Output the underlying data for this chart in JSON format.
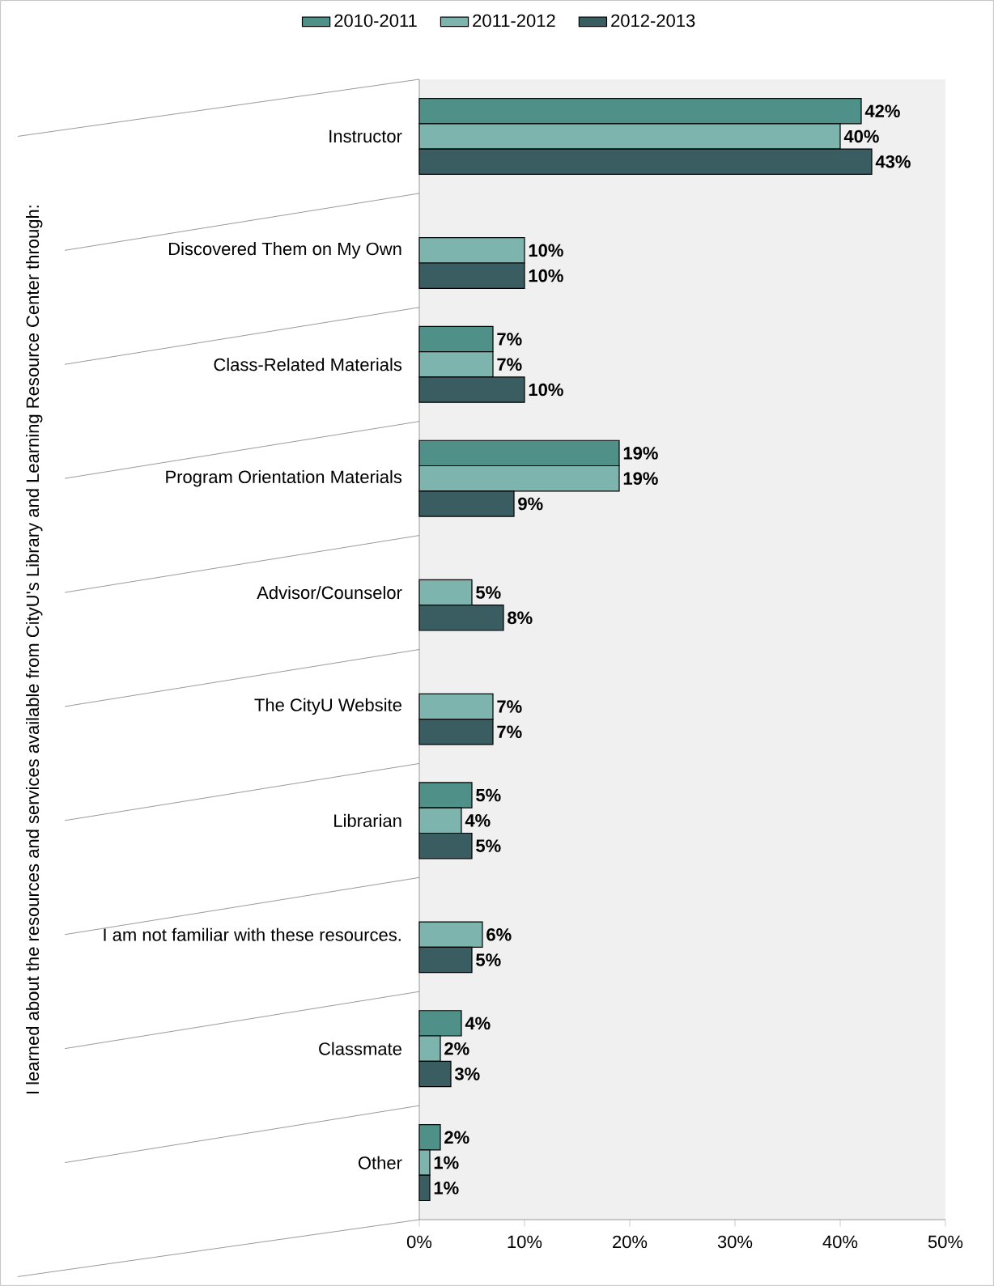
{
  "chart_data": {
    "type": "bar",
    "orientation": "horizontal",
    "ylabel": "I learned about the resources and services available from CityU's Library and Learning Resource Center through:",
    "categories": [
      "Instructor",
      "Discovered Them on My Own",
      "Class-Related Materials",
      "Program Orientation Materials",
      "Advisor/Counselor",
      "The CityU Website",
      "Librarian",
      "I am not familiar with these resources.",
      "Classmate",
      "Other"
    ],
    "series": [
      {
        "name": "2010-2011",
        "color": "#4f9188",
        "values": [
          42,
          null,
          7,
          19,
          null,
          null,
          5,
          null,
          4,
          2
        ],
        "value_labels": [
          "42%",
          null,
          "7%",
          "19%",
          null,
          null,
          "5%",
          null,
          "4%",
          "2%"
        ]
      },
      {
        "name": "2011-2012",
        "color": "#7db5ae",
        "values": [
          40,
          10,
          7,
          19,
          5,
          7,
          4,
          6,
          2,
          1
        ],
        "value_labels": [
          "40%",
          "10%",
          "7%",
          "19%",
          "5%",
          "7%",
          "4%",
          "6%",
          "2%",
          "1%"
        ]
      },
      {
        "name": "2012-2013",
        "color": "#3a5d62",
        "values": [
          43,
          10,
          10,
          9,
          8,
          7,
          5,
          5,
          3,
          1
        ],
        "value_labels": [
          "43%",
          "10%",
          "10%",
          "9%",
          "8%",
          "7%",
          "5%",
          "5%",
          "3%",
          "1%"
        ]
      }
    ],
    "xlim": [
      0,
      50
    ],
    "xticks": [
      {
        "value": 0,
        "label": "0%"
      },
      {
        "value": 10,
        "label": "10%"
      },
      {
        "value": 20,
        "label": "20%"
      },
      {
        "value": 30,
        "label": "30%"
      },
      {
        "value": 40,
        "label": "40%"
      },
      {
        "value": 50,
        "label": "50%"
      }
    ],
    "grid": false,
    "legend": "top"
  }
}
